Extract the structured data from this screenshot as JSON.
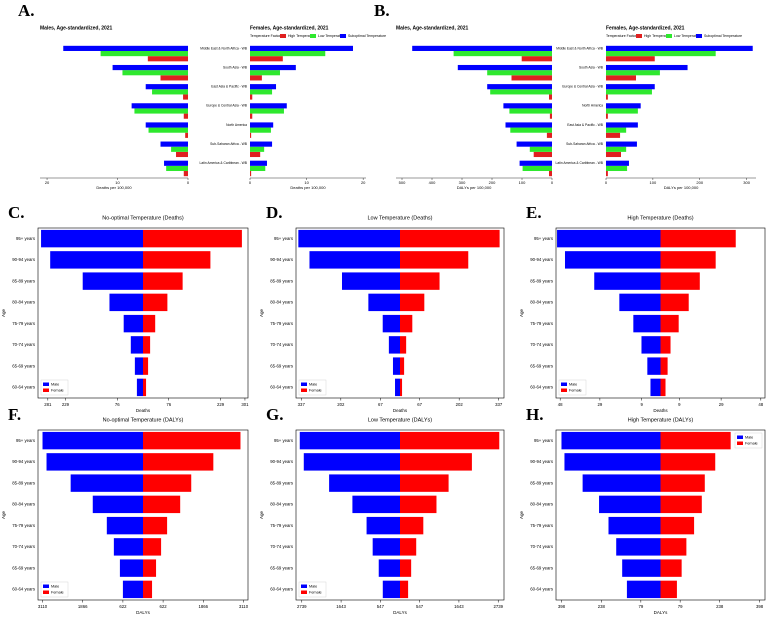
{
  "chart_data": [
    {
      "type": "hbar",
      "panel": "A.",
      "title": "Males, Age-standardized, 2021",
      "x_label": "Deaths per 100,000",
      "xlim": [
        21,
        0
      ],
      "xticks": [
        20,
        10,
        0
      ],
      "series": [
        {
          "name": "High Temperature",
          "color": "#e02020",
          "values": [
            5.7,
            3.9,
            0.7,
            0.6,
            0.4,
            1.7,
            0.6
          ]
        },
        {
          "name": "Low Temperature",
          "color": "#2ee82e",
          "values": [
            12.4,
            9.3,
            5.1,
            7.6,
            5.6,
            2.4,
            3.1
          ]
        },
        {
          "name": "Suboptimal Temperature",
          "color": "#0000ff",
          "values": [
            17.7,
            10.7,
            6,
            8,
            6,
            3.9,
            3.4
          ]
        }
      ]
    },
    {
      "type": "hbar",
      "title": "Females, Age-standardized, 2021",
      "x_label": "Deaths per 100,000",
      "legend_title": "Temperature Factor",
      "categories": [
        "Middle East & North Africa - WB",
        "South Asia - WB",
        "East Asia & Pacific - WB",
        "Europe & Central Asia - WB",
        "North America",
        "Sub-Saharan Africa - WB",
        "Latin America & Caribbean - WB"
      ],
      "xlim": [
        0,
        20.5
      ],
      "xticks": [
        0,
        10,
        20
      ],
      "series": [
        {
          "name": "High Temperature",
          "color": "#e02020",
          "values": [
            5.8,
            2.1,
            0.4,
            0.4,
            0.2,
            1.8,
            0.2
          ]
        },
        {
          "name": "Low Temperature",
          "color": "#2ee82e",
          "values": [
            13.3,
            5.3,
            3.9,
            6,
            3.7,
            2.5,
            2.7
          ]
        },
        {
          "name": "Suboptimal Temperature",
          "color": "#0000ff",
          "values": [
            18.2,
            8.1,
            4.6,
            6.5,
            4.1,
            3.9,
            3
          ]
        }
      ]
    },
    {
      "type": "hbar",
      "panel": "B.",
      "title": "Males, Age-standardized, 2021",
      "x_label": "DALYs per 100,000",
      "xlim": [
        520,
        0
      ],
      "xticks": [
        500,
        400,
        300,
        200,
        100,
        0
      ],
      "series": [
        {
          "name": "High Temperature",
          "color": "#e02020",
          "values": [
            101,
            135,
            10,
            7,
            17,
            61,
            10
          ]
        },
        {
          "name": "Low Temperature",
          "color": "#2ee82e",
          "values": [
            328,
            216,
            206,
            142,
            139,
            74,
            98
          ]
        },
        {
          "name": "Suboptimal Temperature",
          "color": "#0000ff",
          "values": [
            466,
            314,
            216,
            162,
            155,
            118,
            108
          ]
        }
      ]
    },
    {
      "type": "hbar",
      "title": "Females, Age-standardized, 2021",
      "x_label": "DALYs per 100,000",
      "legend_title": "Temperature Factor",
      "categories": [
        "Middle East & North Africa - WB",
        "South Asia - WB",
        "Europe & Central Asia - WB",
        "North America",
        "East Asia & Pacific - WB",
        "Sub-Saharan Africa - WB",
        "Latin America & Caribbean - WB"
      ],
      "xlim": [
        0,
        320
      ],
      "xticks": [
        0,
        100,
        200,
        300
      ],
      "series": [
        {
          "name": "High Temperature",
          "color": "#e02020",
          "values": [
            104,
            64,
            4,
            4,
            30,
            32,
            4
          ]
        },
        {
          "name": "Low Temperature",
          "color": "#2ee82e",
          "values": [
            234,
            115,
            98,
            68,
            43,
            43,
            45
          ]
        },
        {
          "name": "Suboptimal Temperature",
          "color": "#0000ff",
          "values": [
            313,
            174,
            104,
            74,
            68,
            66,
            49
          ]
        }
      ]
    },
    {
      "type": "pyramid",
      "panel": "C.",
      "title": "No-optimal Temperature (Deaths)",
      "x_label": "Deaths",
      "y_label": "Age",
      "legend": "lower left",
      "categories": [
        "95+ years",
        "90-94 years",
        "85-89 years",
        "80-84 years",
        "75-79 years",
        "70-74 years",
        "65-69 years",
        "60-64 years"
      ],
      "xlim": [
        -310,
        310
      ],
      "xticks": [
        {
          "value": -281,
          "label": "281"
        },
        {
          "value": -229,
          "label": "229"
        },
        {
          "value": -76,
          "label": "76"
        },
        76,
        229,
        301
      ],
      "series": [
        {
          "name": "Male",
          "color": "#0000ff",
          "values": [
            -301,
            -274,
            -178,
            -99,
            -57,
            -36,
            -24,
            -18
          ]
        },
        {
          "name": "Female",
          "color": "#ff0000",
          "values": [
            292,
            199,
            117,
            72,
            36,
            21,
            15,
            9
          ]
        }
      ]
    },
    {
      "type": "pyramid",
      "panel": "D.",
      "title": "Low Temperature (Deaths)",
      "x_label": "Deaths",
      "y_label": "Age",
      "legend": "lower left",
      "categories": [
        "95+ years",
        "90-94 years",
        "85-89 years",
        "80-84 years",
        "75-79 years",
        "70-74 years",
        "65-69 years",
        "60-64 years"
      ],
      "xlim": [
        -355,
        355
      ],
      "xticks": [
        {
          "value": -337,
          "label": "337"
        },
        {
          "value": -202,
          "label": "202"
        },
        {
          "value": -67,
          "label": "67"
        },
        67,
        202,
        337
      ],
      "series": [
        {
          "name": "Male",
          "color": "#0000ff",
          "values": [
            -347,
            -309,
            -198,
            -108,
            -59,
            -38,
            -24,
            -17
          ]
        },
        {
          "name": "Female",
          "color": "#ff0000",
          "values": [
            340,
            233,
            135,
            83,
            42,
            21,
            14,
            7
          ]
        }
      ]
    },
    {
      "type": "pyramid",
      "panel": "E.",
      "title": "High Temperature (Deaths)",
      "x_label": "Deaths",
      "y_label": "Age",
      "legend": "lower left",
      "categories": [
        "95+ years",
        "90-94 years",
        "85-89 years",
        "80-84 years",
        "75-79 years",
        "70-74 years",
        "65-69 years",
        "60-64 years"
      ],
      "xlim": [
        -50,
        50
      ],
      "xticks": [
        {
          "value": -48,
          "label": "48"
        },
        {
          "value": -29,
          "label": "29"
        },
        {
          "value": -9,
          "label": "9"
        },
        9,
        29,
        48
      ],
      "series": [
        {
          "name": "Male",
          "color": "#0000ff",
          "values": [
            -49.5,
            -45.7,
            -31.7,
            -19.7,
            -13,
            -9.1,
            -6.3,
            -4.8
          ]
        },
        {
          "name": "Female",
          "color": "#ff0000",
          "values": [
            36,
            26.4,
            18.8,
            13.5,
            8.7,
            4.8,
            3.4,
            2.4
          ]
        }
      ]
    },
    {
      "type": "pyramid",
      "panel": "F.",
      "title": "No-optimal Temperature (DALYs)",
      "x_label": "DALYs",
      "y_label": "Age",
      "legend": "lower left",
      "categories": [
        "95+ years",
        "90-94 years",
        "85-89 years",
        "80-84 years",
        "75-79 years",
        "70-74 years",
        "65-69 years",
        "60-64 years"
      ],
      "xlim": [
        -3250,
        3250
      ],
      "xticks": [
        {
          "value": -3110,
          "label": "3110"
        },
        {
          "value": -1866,
          "label": "1866"
        },
        {
          "value": -622,
          "label": "622"
        },
        622,
        1866,
        3110
      ],
      "series": [
        {
          "name": "Male",
          "color": "#0000ff",
          "values": [
            -3110,
            -2986,
            -2239,
            -1555,
            -1120,
            -902,
            -715,
            -622
          ]
        },
        {
          "name": "Female",
          "color": "#ff0000",
          "values": [
            3017,
            2177,
            1493,
            1151,
            746,
            560,
            404,
            280
          ]
        }
      ]
    },
    {
      "type": "pyramid",
      "panel": "G.",
      "title": "Low Temperature (DALYs)",
      "x_label": "DALYs",
      "y_label": "Age",
      "legend": "lower left",
      "categories": [
        "95+ years",
        "90-94 years",
        "85-89 years",
        "80-84 years",
        "75-79 years",
        "70-74 years",
        "65-69 years",
        "60-64 years"
      ],
      "xlim": [
        -2900,
        2900
      ],
      "xticks": [
        {
          "value": -2739,
          "label": "2739"
        },
        {
          "value": -1643,
          "label": "1643"
        },
        {
          "value": -547,
          "label": "547"
        },
        547,
        1643,
        2739
      ],
      "series": [
        {
          "name": "Male",
          "color": "#0000ff",
          "values": [
            -2795,
            -2683,
            -1977,
            -1327,
            -932,
            -762,
            -593,
            -480
          ]
        },
        {
          "name": "Female",
          "color": "#ff0000",
          "values": [
            2768,
            2005,
            1355,
            1017,
            650,
            452,
            311,
            226
          ]
        }
      ]
    },
    {
      "type": "pyramid",
      "panel": "H.",
      "title": "High Temperature (DALYs)",
      "x_label": "DALYs",
      "y_label": "Age",
      "legend": "upper right",
      "categories": [
        "95+ years",
        "90-94 years",
        "85-89 years",
        "80-84 years",
        "75-79 years",
        "70-74 years",
        "65-69 years",
        "60-64 years"
      ],
      "xlim": [
        -420,
        420
      ],
      "xticks": [
        {
          "value": -398,
          "label": "398"
        },
        {
          "value": -238,
          "label": "238"
        },
        {
          "value": -79,
          "label": "79"
        },
        79,
        238,
        398
      ],
      "series": [
        {
          "name": "Male",
          "color": "#0000ff",
          "values": [
            -398,
            -386,
            -313,
            -247,
            -209,
            -178,
            -154,
            -135
          ]
        },
        {
          "name": "Female",
          "color": "#ff0000",
          "values": [
            282,
            220,
            178,
            166,
            135,
            104,
            85,
            66
          ]
        }
      ]
    }
  ]
}
